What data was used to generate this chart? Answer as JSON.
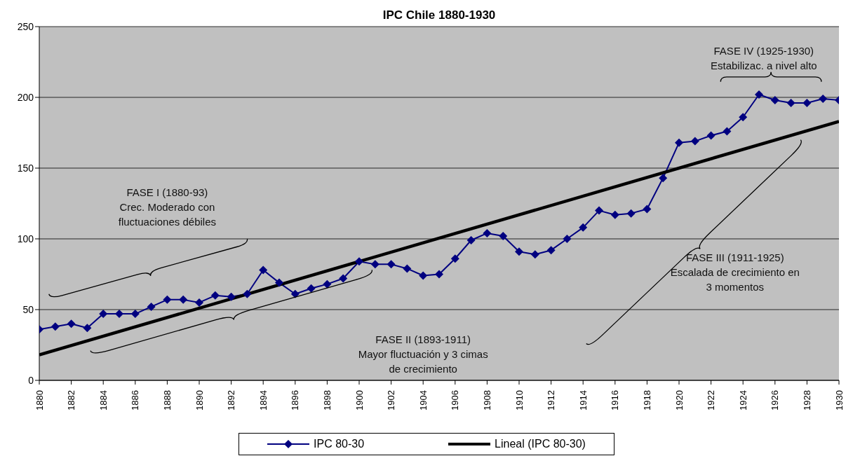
{
  "chart_data": {
    "type": "line",
    "title": "IPC Chile 1880-1930",
    "x": [
      1880,
      1881,
      1882,
      1883,
      1884,
      1885,
      1886,
      1887,
      1888,
      1889,
      1890,
      1891,
      1892,
      1893,
      1894,
      1895,
      1896,
      1897,
      1898,
      1899,
      1900,
      1901,
      1902,
      1903,
      1904,
      1905,
      1906,
      1907,
      1908,
      1909,
      1910,
      1911,
      1912,
      1913,
      1914,
      1915,
      1916,
      1917,
      1918,
      1919,
      1920,
      1921,
      1922,
      1923,
      1924,
      1925,
      1926,
      1927,
      1928,
      1929,
      1930
    ],
    "series": [
      {
        "name": "IPC 80-30",
        "color": "#000080",
        "marker": "diamond",
        "values": [
          36,
          38,
          40,
          37,
          47,
          47,
          47,
          52,
          57,
          57,
          55,
          60,
          59,
          61,
          78,
          69,
          61,
          65,
          68,
          72,
          84,
          82,
          82,
          79,
          74,
          75,
          86,
          99,
          104,
          102,
          91,
          89,
          92,
          100,
          108,
          120,
          117,
          118,
          121,
          143,
          168,
          169,
          173,
          176,
          186,
          202,
          198,
          196,
          196,
          199,
          198
        ]
      },
      {
        "name": "Lineal (IPC 80-30)",
        "type": "line",
        "color": "#000000",
        "marker": "none",
        "x": [
          1880,
          1930
        ],
        "values": [
          18,
          183
        ]
      }
    ],
    "xlim": [
      1880,
      1930
    ],
    "xticks": [
      1880,
      1882,
      1884,
      1886,
      1888,
      1890,
      1892,
      1894,
      1896,
      1898,
      1900,
      1902,
      1904,
      1906,
      1908,
      1910,
      1912,
      1914,
      1916,
      1918,
      1920,
      1922,
      1924,
      1926,
      1928,
      1930
    ],
    "ylim": [
      0,
      250
    ],
    "yticks": [
      0,
      50,
      100,
      150,
      200,
      250
    ],
    "grid": "y",
    "legend": "bottom",
    "line_style": "solid",
    "annotations": [
      "FASE I (1880-93)\nCrec. Moderado con\nfluctuaciones débiles",
      "FASE II (1893-1911)\nMayor fluctuación y 3 cimas\nde crecimiento",
      "FASE III (1911-1925)\nEscalada de crecimiento en\n3 momentos",
      "FASE IV (1925-1930)\nEstabilizac. a nivel alto"
    ]
  }
}
